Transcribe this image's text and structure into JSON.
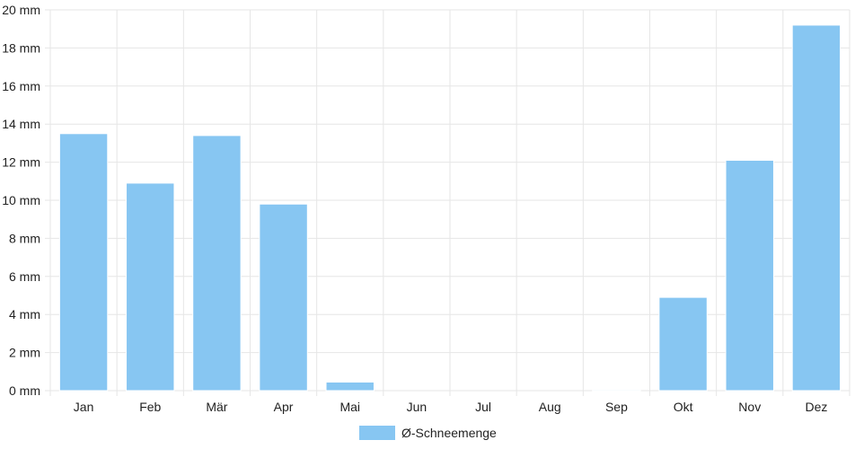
{
  "chart_data": {
    "type": "bar",
    "categories": [
      "Jan",
      "Feb",
      "Mär",
      "Apr",
      "Mai",
      "Jun",
      "Jul",
      "Aug",
      "Sep",
      "Okt",
      "Nov",
      "Dez"
    ],
    "series": [
      {
        "name": "Ø-Schneemenge",
        "values": [
          13.5,
          10.9,
          13.4,
          9.8,
          0.45,
          0,
          0,
          0,
          0.05,
          4.9,
          12.1,
          19.2
        ],
        "color": "#87c6f2"
      }
    ],
    "yticks": [
      "0 mm",
      "2 mm",
      "4 mm",
      "6 mm",
      "8 mm",
      "10 mm",
      "12 mm",
      "14 mm",
      "16 mm",
      "18 mm",
      "20 mm"
    ],
    "ylim": [
      0,
      20
    ],
    "grid": true,
    "legend_position": "bottom-center",
    "colors": {
      "grid": "#e6e6e6",
      "bar_stroke": "#ffffff"
    }
  }
}
